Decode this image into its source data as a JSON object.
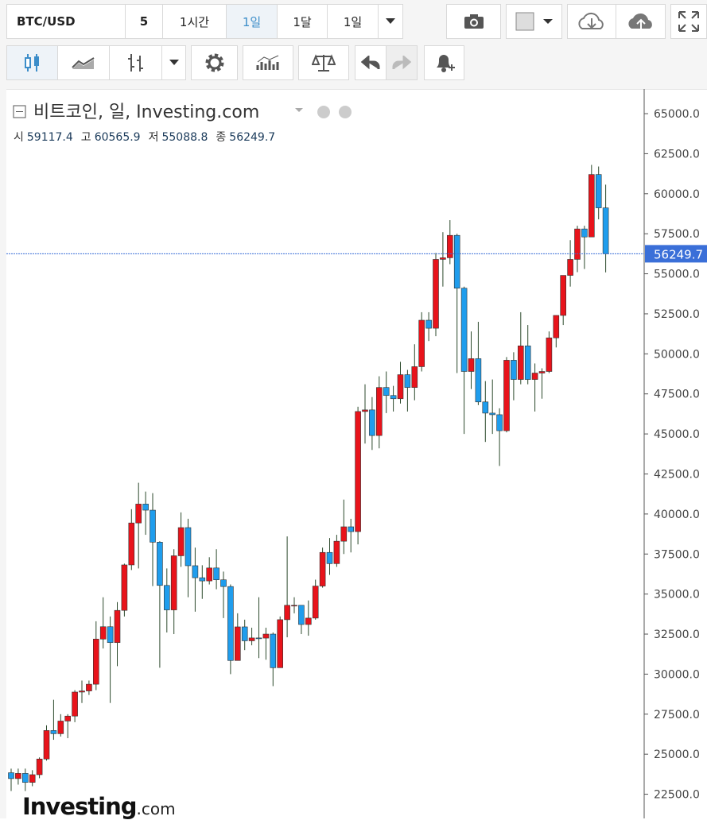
{
  "toolbar": {
    "symbol": "BTC/USD",
    "intervals": [
      "5",
      "1시간",
      "1일",
      "1달",
      "1일"
    ]
  },
  "logo": {
    "name": "Investing",
    "suffix": ".com"
  },
  "chart_data": {
    "type": "candlestick",
    "legend_title": "비트코인, 일, Investing.com",
    "ohlc_labels": [
      "시",
      "고",
      "저",
      "종"
    ],
    "up_color": "#e8131b",
    "down_color": "#1f9ded",
    "wick_color": "#2c4a2c",
    "price_line_color": "#3a6fd8",
    "ylim": [
      20990,
      66490
    ],
    "yticks": [
      {
        "value": 22500,
        "label": "22500.0"
      },
      {
        "value": 25000,
        "label": "25000.0"
      },
      {
        "value": 27500,
        "label": "27500.0"
      },
      {
        "value": 30000,
        "label": "30000.0"
      },
      {
        "value": 32500,
        "label": "32500.0"
      },
      {
        "value": 35000,
        "label": "35000.0"
      },
      {
        "value": 37500,
        "label": "37500.0"
      },
      {
        "value": 40000,
        "label": "40000.0"
      },
      {
        "value": 42500,
        "label": "42500.0"
      },
      {
        "value": 45000,
        "label": "45000.0"
      },
      {
        "value": 47500,
        "label": "47500.0"
      },
      {
        "value": 50000,
        "label": "50000.0"
      },
      {
        "value": 52500,
        "label": "52500.0"
      },
      {
        "value": 55000,
        "label": "55000.0"
      },
      {
        "value": 57500,
        "label": "57500.0"
      },
      {
        "value": 60000,
        "label": "60000.0"
      },
      {
        "value": 62500,
        "label": "62500.0"
      },
      {
        "value": 65000,
        "label": "65000.0"
      }
    ],
    "open": [
      23843,
      23476,
      23800,
      23240,
      23720,
      24700,
      26480,
      26280,
      27070,
      27380,
      28880,
      28950,
      29370,
      32190,
      32960,
      31970,
      33980,
      36820,
      39440,
      40620,
      40240,
      38240,
      35540,
      34010,
      37390,
      39150,
      36770,
      36020,
      35820,
      36630,
      35890,
      35470,
      30850,
      32950,
      32080,
      32260,
      32250,
      32500,
      30400,
      33400,
      34300,
      34300,
      33100,
      33500,
      35500,
      37600,
      36900,
      38300,
      39200,
      38900,
      46400,
      46500,
      44900,
      47900,
      47400,
      47200,
      48700,
      47900,
      49200,
      52100,
      51600,
      55900,
      56000,
      57400,
      54100,
      48900,
      49700,
      47000,
      46300,
      46200,
      45200,
      49600,
      48400,
      50500,
      48400,
      48800,
      48900,
      51000,
      52400,
      54900,
      55900,
      57800,
      57300,
      61200,
      59117.4
    ],
    "high": [
      24100,
      24100,
      24100,
      24000,
      24800,
      26800,
      28400,
      27500,
      27500,
      29000,
      29600,
      29600,
      33300,
      34800,
      33600,
      34500,
      36900,
      40300,
      41950,
      41400,
      41300,
      38300,
      36600,
      37800,
      40100,
      39700,
      37900,
      36800,
      37300,
      37800,
      36400,
      35600,
      33800,
      33400,
      32900,
      34800,
      32900,
      32600,
      33600,
      38600,
      34800,
      34300,
      34600,
      35900,
      37900,
      38500,
      38700,
      40900,
      39700,
      46700,
      48100,
      47300,
      48600,
      48900,
      48000,
      49500,
      49000,
      50600,
      52600,
      52600,
      56300,
      57600,
      58350,
      57500,
      54200,
      51400,
      52000,
      48300,
      48400,
      46600,
      49800,
      50100,
      52600,
      51800,
      49400,
      49100,
      51400,
      52400,
      54900,
      57100,
      58000,
      58000,
      61800,
      61700,
      60565.9
    ],
    "low": [
      22700,
      23100,
      22700,
      23000,
      23500,
      24600,
      25900,
      26100,
      26000,
      27000,
      28200,
      28700,
      29000,
      31600,
      28200,
      30500,
      33600,
      36500,
      36600,
      38700,
      35500,
      30400,
      32600,
      32500,
      36700,
      34800,
      33900,
      34700,
      35600,
      35300,
      33500,
      30000,
      31000,
      31500,
      31800,
      31000,
      30900,
      29250,
      30400,
      32300,
      33800,
      32500,
      32400,
      33400,
      35400,
      36200,
      36700,
      37500,
      37600,
      38100,
      44400,
      44000,
      44100,
      46300,
      46400,
      46900,
      46400,
      47100,
      48900,
      50800,
      51100,
      54200,
      55600,
      48800,
      45000,
      47800,
      46800,
      44500,
      45000,
      43000,
      45100,
      47100,
      48100,
      48100,
      46400,
      47200,
      48800,
      50400,
      51800,
      54200,
      55100,
      55300,
      57300,
      58400,
      55088.8
    ],
    "close": [
      23476,
      23800,
      23240,
      23720,
      24700,
      26480,
      26280,
      27070,
      27380,
      28880,
      28950,
      29370,
      32190,
      32960,
      31970,
      33980,
      36820,
      39440,
      40620,
      40240,
      38240,
      35540,
      34010,
      37390,
      39150,
      36770,
      36020,
      35820,
      36630,
      35890,
      35470,
      30850,
      32950,
      32080,
      32260,
      32250,
      32500,
      30400,
      33400,
      34300,
      34300,
      33100,
      33500,
      35500,
      37600,
      36900,
      38300,
      39200,
      38900,
      46400,
      46500,
      44900,
      47900,
      47400,
      47200,
      48700,
      47900,
      49200,
      52100,
      51600,
      55900,
      56000,
      57400,
      54100,
      48900,
      49700,
      47000,
      46300,
      46200,
      45200,
      49600,
      48400,
      50500,
      48400,
      48800,
      48900,
      51000,
      52400,
      54900,
      55900,
      57800,
      57300,
      61200,
      59117.4,
      56249.7
    ]
  }
}
